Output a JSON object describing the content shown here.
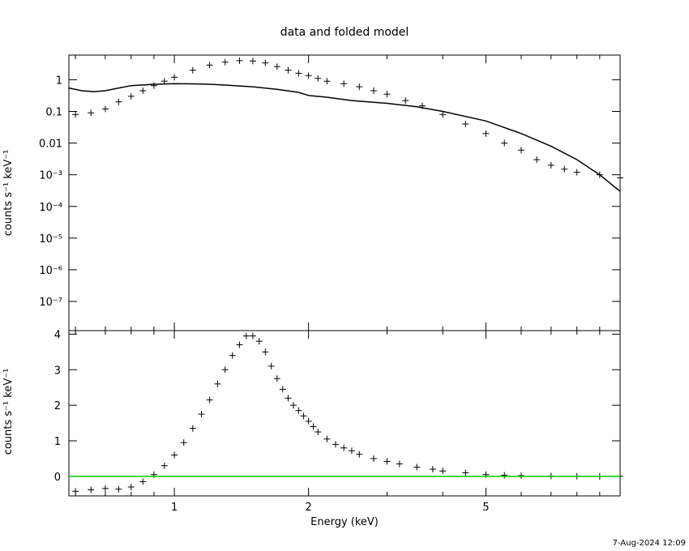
{
  "title": "data and folded model",
  "timestamp": "7-Aug-2024 12:09",
  "colors": {
    "data": "#000000",
    "model": "#000000",
    "zero_line": "#00cc00"
  },
  "chart_data": [
    {
      "type": "line",
      "panel": "top",
      "title": "data and folded model",
      "ylabel": "counts s⁻¹ keV⁻¹",
      "xlabel": "",
      "xscale": "log",
      "yscale": "log",
      "xlim": [
        0.58,
        10.0
      ],
      "ylim": [
        1.2e-08,
        6
      ],
      "y_tick_labels": [
        "1",
        "0.1",
        "0.01",
        "10⁻³",
        "10⁻⁴",
        "10⁻⁵",
        "10⁻⁶",
        "10⁻⁷"
      ],
      "y_ticks": [
        1,
        0.1,
        0.01,
        0.001,
        0.0001,
        1e-05,
        1e-06,
        1e-07
      ],
      "series": [
        {
          "style": "crosses",
          "x": [
            0.6,
            0.65,
            0.7,
            0.75,
            0.8,
            0.85,
            0.9,
            0.95,
            1.0,
            1.1,
            1.2,
            1.3,
            1.4,
            1.5,
            1.6,
            1.7,
            1.8,
            1.9,
            2.0,
            2.1,
            2.2,
            2.4,
            2.6,
            2.8,
            3.0,
            3.3,
            3.6,
            4.0,
            4.5,
            5.0,
            5.5,
            6.0,
            6.5,
            7.0,
            7.5,
            8.0,
            9.0,
            10.0
          ],
          "y": [
            0.08,
            0.09,
            0.12,
            0.2,
            0.3,
            0.45,
            0.65,
            0.9,
            1.2,
            2.0,
            2.9,
            3.6,
            4.0,
            3.9,
            3.4,
            2.6,
            2.0,
            1.6,
            1.35,
            1.1,
            0.9,
            0.75,
            0.6,
            0.45,
            0.35,
            0.22,
            0.15,
            0.08,
            0.04,
            0.02,
            0.01,
            0.006,
            0.003,
            0.002,
            0.0015,
            0.0012,
            0.001,
            0.0008
          ]
        },
        {
          "style": "line",
          "x": [
            0.58,
            0.62,
            0.66,
            0.7,
            0.75,
            0.8,
            0.9,
            1.0,
            1.1,
            1.2,
            1.3,
            1.5,
            1.7,
            1.9,
            2.0,
            2.2,
            2.5,
            3.0,
            3.5,
            4.0,
            5.0,
            6.0,
            7.0,
            8.0,
            9.0,
            10.0
          ],
          "y": [
            0.55,
            0.45,
            0.42,
            0.45,
            0.55,
            0.65,
            0.72,
            0.75,
            0.74,
            0.72,
            0.68,
            0.6,
            0.5,
            0.4,
            0.32,
            0.28,
            0.22,
            0.18,
            0.14,
            0.1,
            0.05,
            0.02,
            0.008,
            0.003,
            0.001,
            0.0003
          ]
        }
      ]
    },
    {
      "type": "scatter",
      "panel": "bottom",
      "ylabel": "counts s⁻¹ keV⁻¹",
      "xlabel": "Energy (keV)",
      "xscale": "log",
      "xlim": [
        0.58,
        10.0
      ],
      "ylim": [
        -0.55,
        4.1
      ],
      "x_tick_labels": [
        "1",
        "2",
        "5"
      ],
      "x_ticks": [
        1,
        2,
        5
      ],
      "y_tick_labels": [
        "0",
        "1",
        "2",
        "3",
        "4"
      ],
      "y_ticks": [
        0,
        1,
        2,
        3,
        4
      ],
      "series": [
        {
          "style": "crosses",
          "x": [
            0.6,
            0.65,
            0.7,
            0.75,
            0.8,
            0.85,
            0.9,
            0.95,
            1.0,
            1.05,
            1.1,
            1.15,
            1.2,
            1.25,
            1.3,
            1.35,
            1.4,
            1.45,
            1.5,
            1.55,
            1.6,
            1.65,
            1.7,
            1.75,
            1.8,
            1.85,
            1.9,
            1.95,
            2.0,
            2.05,
            2.1,
            2.2,
            2.3,
            2.4,
            2.5,
            2.6,
            2.8,
            3.0,
            3.2,
            3.5,
            3.8,
            4.0,
            4.5,
            5.0,
            5.5,
            6.0,
            7.0,
            8.0,
            9.0,
            10.0
          ],
          "y": [
            -0.42,
            -0.38,
            -0.34,
            -0.36,
            -0.3,
            -0.15,
            0.05,
            0.3,
            0.6,
            0.95,
            1.35,
            1.75,
            2.15,
            2.6,
            3.0,
            3.4,
            3.7,
            3.95,
            3.95,
            3.8,
            3.5,
            3.1,
            2.75,
            2.45,
            2.2,
            2.0,
            1.85,
            1.7,
            1.55,
            1.4,
            1.25,
            1.05,
            0.9,
            0.8,
            0.72,
            0.62,
            0.5,
            0.42,
            0.35,
            0.26,
            0.2,
            0.15,
            0.1,
            0.05,
            0.03,
            0.02,
            0.01,
            0.005,
            0.0,
            0.0
          ]
        },
        {
          "style": "line",
          "x": [
            0.58,
            10.0
          ],
          "y": [
            0,
            0
          ]
        }
      ]
    }
  ]
}
